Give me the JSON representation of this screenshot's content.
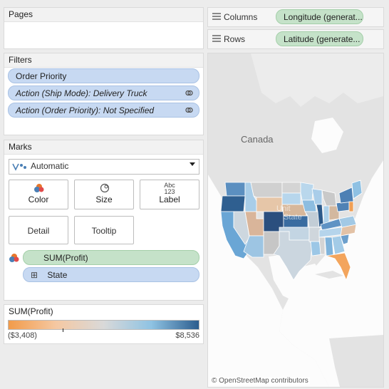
{
  "pages": {
    "title": "Pages"
  },
  "filters": {
    "title": "Filters",
    "items": [
      {
        "label": "Order Priority"
      },
      {
        "label": "Action (Ship Mode): Delivery Truck"
      },
      {
        "label": "Action (Order Priority): Not Specified"
      }
    ]
  },
  "marks": {
    "title": "Marks",
    "type_selected": "Automatic",
    "cards": {
      "color": "Color",
      "size": "Size",
      "label": "Label",
      "detail": "Detail",
      "tooltip": "Tooltip"
    },
    "label_glyph_top": "Abc",
    "label_glyph_bottom": "123",
    "fields": {
      "color_field": "SUM(Profit)",
      "detail_field": "State",
      "expand_symbol": "⊞"
    }
  },
  "legend": {
    "title": "SUM(Profit)",
    "min_label": "($3,408)",
    "max_label": "$8,536",
    "min_value": -3408,
    "max_value": 8536,
    "colors": [
      "#f29b4a",
      "#f5c8a2",
      "#d9d9d9",
      "#8fc3e3",
      "#2c5d8e"
    ]
  },
  "shelves": {
    "columns_label": "Columns",
    "columns_pill": "Longitude (generat...",
    "rows_label": "Rows",
    "rows_pill": "Latitude (generate..."
  },
  "map": {
    "country_label": "Canada",
    "attribution": "© OpenStreetMap contributors",
    "ghost_label_1": "Unit",
    "ghost_label_2": "State",
    "states": [
      {
        "name": "WA",
        "color": "#5b8fc0"
      },
      {
        "name": "OR",
        "color": "#2f5f90"
      },
      {
        "name": "CA",
        "color": "#6aa6d5"
      },
      {
        "name": "NV",
        "color": "#cdd7df"
      },
      {
        "name": "ID",
        "color": "#a8cde8"
      },
      {
        "name": "MT",
        "color": "#d0d0d0"
      },
      {
        "name": "WY",
        "color": "#e6c6a8"
      },
      {
        "name": "UT",
        "color": "#d9b59a"
      },
      {
        "name": "AZ",
        "color": "#9dc5e3"
      },
      {
        "name": "CO",
        "color": "#2b4f7e"
      },
      {
        "name": "NM",
        "color": "#c6c6c6"
      },
      {
        "name": "ND",
        "color": "#d4d4d4"
      },
      {
        "name": "SD",
        "color": "#b7d6ec"
      },
      {
        "name": "NE",
        "color": "#d7b79a"
      },
      {
        "name": "KS",
        "color": "#3a6ca0"
      },
      {
        "name": "OK",
        "color": "#c3d5e3"
      },
      {
        "name": "TX",
        "color": "#cbd6df"
      },
      {
        "name": "MN",
        "color": "#b9d7ec"
      },
      {
        "name": "IA",
        "color": "#8dbde0"
      },
      {
        "name": "MO",
        "color": "#c2cdd6"
      },
      {
        "name": "AR",
        "color": "#cfd6dc"
      },
      {
        "name": "LA",
        "color": "#9cc7e6"
      },
      {
        "name": "WI",
        "color": "#a9cde9"
      },
      {
        "name": "IL",
        "color": "#2c5a8a"
      },
      {
        "name": "MI",
        "color": "#c9c9c9"
      },
      {
        "name": "IN",
        "color": "#aed1ea"
      },
      {
        "name": "OH",
        "color": "#d3b89f"
      },
      {
        "name": "KY",
        "color": "#5f93c4"
      },
      {
        "name": "TN",
        "color": "#b5d4eb"
      },
      {
        "name": "MS",
        "color": "#d4d4d4"
      },
      {
        "name": "AL",
        "color": "#7fb3db"
      },
      {
        "name": "GA",
        "color": "#a3cbe7"
      },
      {
        "name": "FL",
        "color": "#f3a55d"
      },
      {
        "name": "SC",
        "color": "#6c9fcc"
      },
      {
        "name": "NC",
        "color": "#e3c2a6"
      },
      {
        "name": "VA",
        "color": "#a2c9e5"
      },
      {
        "name": "PA",
        "color": "#4f82b5"
      },
      {
        "name": "NY",
        "color": "#4d80b4"
      },
      {
        "name": "NE-states",
        "color": "#8fc1e3"
      },
      {
        "name": "NJ",
        "color": "#f0a056"
      }
    ]
  }
}
